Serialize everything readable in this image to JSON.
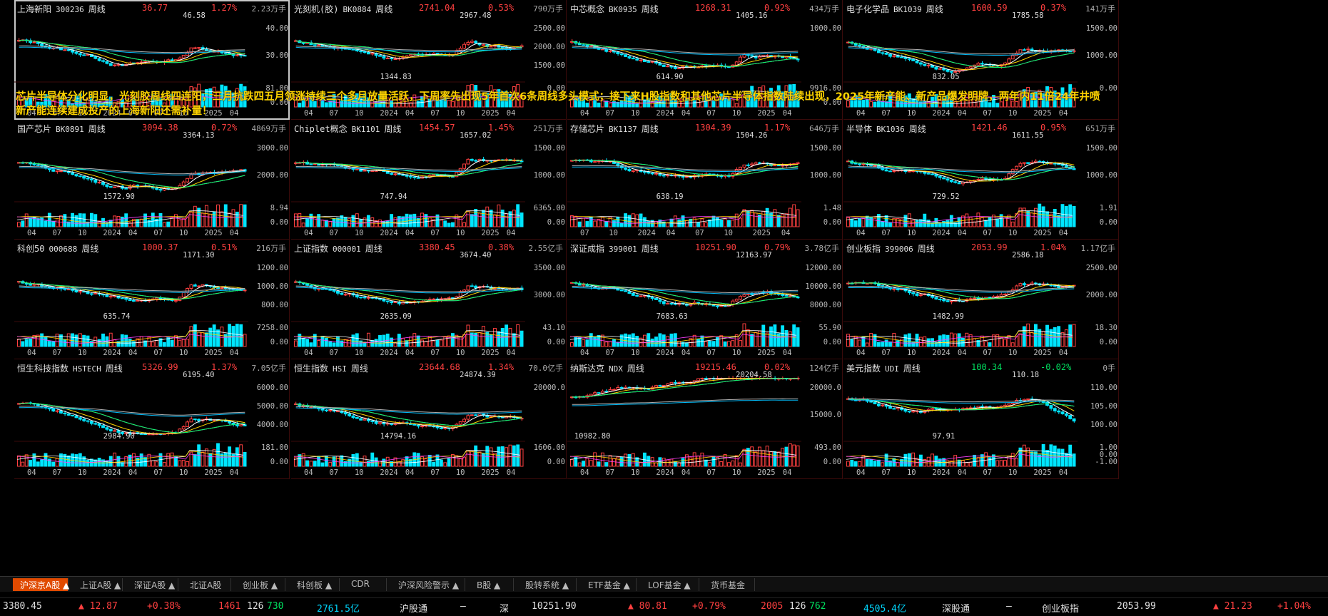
{
  "overlay_text": "芯片半导体分化明显，光刻胶周线四连阳，三月抗跌四五月领涨持续三个多月放量活跃，下周率先出现5年首次6条周线多头模式；接下来H股指数和其他芯片半导体指数陆续出现，2025年新产能、新产品爆发明牌，两年内11倍24年井喷新产能连续建成投产的上海新阳还需补量！",
  "colors": {
    "up": "#ff4040",
    "down": "#00e5ff",
    "ma5": "#ffffff",
    "ma10": "#ffd400",
    "ma20": "#ff40ff",
    "ma30": "#00ff60",
    "ma60": "#00c0ff",
    "ma120": "#b0b0b0"
  },
  "panels": [
    {
      "name": "上海新阳",
      "code": "300236",
      "period": "周线",
      "price": "36.77",
      "pct": "1.27%",
      "vol": "2.23万手",
      "yticks": [
        "40.00",
        "30.00"
      ],
      "vticks": [
        "81.00",
        "0.00"
      ],
      "xticks": [
        "04",
        "07",
        "10",
        "2024",
        "04",
        "07",
        "10",
        "2025",
        "04"
      ],
      "hi_label": "46.58",
      "lo_label": "",
      "selected": true
    },
    {
      "name": "光刻机(胶)",
      "code": "BK0884",
      "period": "周线",
      "price": "2741.04",
      "pct": "0.53%",
      "vol": "790万手",
      "yticks": [
        "2500.00",
        "2000.00",
        "1500.00"
      ],
      "vticks": [
        "0.00"
      ],
      "xticks": [
        "04",
        "07",
        "10",
        "2024",
        "04",
        "07",
        "10",
        "2025",
        "04"
      ],
      "hi_label": "2967.48",
      "lo_label": "1344.83"
    },
    {
      "name": "中芯概念",
      "code": "BK0935",
      "period": "周线",
      "price": "1268.31",
      "pct": "0.92%",
      "vol": "434万手",
      "yticks": [
        "1000.00"
      ],
      "vticks": [
        "9916.00",
        "0.00"
      ],
      "xticks": [
        "04",
        "07",
        "10",
        "2024",
        "04",
        "07",
        "10",
        "2025",
        "04"
      ],
      "hi_label": "1405.16",
      "lo_label": "614.90"
    },
    {
      "name": "电子化学品",
      "code": "BK1039",
      "period": "周线",
      "price": "1600.59",
      "pct": "0.37%",
      "vol": "141万手",
      "yticks": [
        "1500.00",
        "1000.00"
      ],
      "vticks": [
        "0.00"
      ],
      "xticks": [
        "04",
        "07",
        "10",
        "2024",
        "04",
        "07",
        "10",
        "2025",
        "04"
      ],
      "hi_label": "1785.58",
      "lo_label": "832.05"
    },
    {
      "name": "国产芯片",
      "code": "BK0891",
      "period": "周线",
      "price": "3094.38",
      "pct": "0.72%",
      "vol": "4869万手",
      "yticks": [
        "3000.00",
        "2000.00"
      ],
      "vticks": [
        "8.94",
        "0.00"
      ],
      "xticks": [
        "04",
        "07",
        "10",
        "2024",
        "04",
        "07",
        "10",
        "2025",
        "04"
      ],
      "hi_label": "3364.13",
      "lo_label": "1572.90"
    },
    {
      "name": "Chiplet概念",
      "code": "BK1101",
      "period": "周线",
      "price": "1454.57",
      "pct": "1.45%",
      "vol": "251万手",
      "yticks": [
        "1500.00",
        "1000.00"
      ],
      "vticks": [
        "6365.00",
        "0.00"
      ],
      "xticks": [
        "04",
        "07",
        "10",
        "2024",
        "04",
        "07",
        "10",
        "2025",
        "04"
      ],
      "hi_label": "1657.02",
      "lo_label": "747.94"
    },
    {
      "name": "存储芯片",
      "code": "BK1137",
      "period": "周线",
      "price": "1304.39",
      "pct": "1.17%",
      "vol": "646万手",
      "yticks": [
        "1500.00",
        "1000.00"
      ],
      "vticks": [
        "1.48",
        "0.00"
      ],
      "xticks": [
        "07",
        "10",
        "2024",
        "04",
        "07",
        "10",
        "2025",
        "04"
      ],
      "hi_label": "1504.26",
      "lo_label": "638.19"
    },
    {
      "name": "半导体",
      "code": "BK1036",
      "period": "周线",
      "price": "1421.46",
      "pct": "0.95%",
      "vol": "651万手",
      "yticks": [
        "1500.00",
        "1000.00"
      ],
      "vticks": [
        "1.91",
        "0.00"
      ],
      "xticks": [
        "04",
        "07",
        "10",
        "2024",
        "04",
        "07",
        "10",
        "2025",
        "04"
      ],
      "hi_label": "1611.55",
      "lo_label": "729.52"
    },
    {
      "name": "科创50",
      "code": "000688",
      "period": "周线",
      "price": "1000.37",
      "pct": "0.51%",
      "vol": "216万手",
      "yticks": [
        "1200.00",
        "1000.00",
        "800.00"
      ],
      "vticks": [
        "7258.00",
        "0.00"
      ],
      "xticks": [
        "04",
        "07",
        "10",
        "2024",
        "04",
        "07",
        "10",
        "2025",
        "04"
      ],
      "hi_label": "1171.30",
      "lo_label": "635.74"
    },
    {
      "name": "上证指数",
      "code": "000001",
      "period": "周线",
      "price": "3380.45",
      "pct": "0.38%",
      "vol": "2.55亿手",
      "yticks": [
        "3500.00",
        "3000.00"
      ],
      "vticks": [
        "43.10",
        "0.00"
      ],
      "xticks": [
        "04",
        "07",
        "10",
        "2024",
        "04",
        "07",
        "10",
        "2025",
        "04"
      ],
      "hi_label": "3674.40",
      "lo_label": "2635.09"
    },
    {
      "name": "深证成指",
      "code": "399001",
      "period": "周线",
      "price": "10251.90",
      "pct": "0.79%",
      "vol": "3.78亿手",
      "yticks": [
        "12000.00",
        "10000.00",
        "8000.00"
      ],
      "vticks": [
        "55.90",
        "0.00"
      ],
      "xticks": [
        "04",
        "07",
        "10",
        "2024",
        "04",
        "07",
        "10",
        "2025",
        "04"
      ],
      "hi_label": "12163.97",
      "lo_label": "7683.63"
    },
    {
      "name": "创业板指",
      "code": "399006",
      "period": "周线",
      "price": "2053.99",
      "pct": "1.04%",
      "vol": "1.17亿手",
      "yticks": [
        "2500.00",
        "2000.00"
      ],
      "vticks": [
        "18.30",
        "0.00"
      ],
      "xticks": [
        "04",
        "07",
        "10",
        "2024",
        "04",
        "07",
        "10",
        "2025",
        "04"
      ],
      "hi_label": "2586.18",
      "lo_label": "1482.99"
    },
    {
      "name": "恒生科技指数",
      "code": "HSTECH",
      "period": "周线",
      "price": "5326.99",
      "pct": "1.37%",
      "vol": "7.05亿手",
      "yticks": [
        "6000.00",
        "5000.00",
        "4000.00"
      ],
      "vticks": [
        "181.00",
        "0.00"
      ],
      "xticks": [
        "04",
        "07",
        "10",
        "2024",
        "04",
        "07",
        "10",
        "2025",
        "04"
      ],
      "hi_label": "6195.40",
      "lo_label": "2984.90"
    },
    {
      "name": "恒生指数",
      "code": "HSI",
      "period": "周线",
      "price": "23644.68",
      "pct": "1.34%",
      "vol": "70.0亿手",
      "yticks": [
        "20000.0"
      ],
      "vticks": [
        "1606.00",
        "0.00"
      ],
      "xticks": [
        "04",
        "07",
        "10",
        "2024",
        "04",
        "07",
        "10",
        "2025",
        "04"
      ],
      "hi_label": "24874.39",
      "lo_label": "14794.16"
    },
    {
      "name": "纳斯达克",
      "code": "NDX",
      "period": "周线",
      "price": "19215.46",
      "pct": "0.02%",
      "vol": "124亿手",
      "yticks": [
        "20000.0",
        "15000.0"
      ],
      "vticks": [
        "493.00",
        "0.00"
      ],
      "xticks": [
        "04",
        "07",
        "10",
        "2024",
        "04",
        "07",
        "10",
        "2025",
        "04"
      ],
      "hi_label": "20204.58",
      "lo_label": "10982.80"
    },
    {
      "name": "美元指数",
      "code": "UDI",
      "period": "周线",
      "price": "100.34",
      "pct": "-0.02%",
      "vol": "0手",
      "yticks": [
        "110.00",
        "105.00",
        "100.00"
      ],
      "vticks": [
        "1.00",
        "0.00",
        "-1.00"
      ],
      "xticks": [
        "04",
        "07",
        "10",
        "2024",
        "04",
        "07",
        "10",
        "2025",
        "04"
      ],
      "hi_label": "110.18",
      "lo_label": "97.91"
    }
  ],
  "tabs": [
    "沪深京A股 ▲",
    "上证A股 ▲",
    "深证A股 ▲",
    "北证A股",
    "创业板 ▲",
    "科创板 ▲",
    "CDR",
    "沪深风险警示 ▲",
    "B股 ▲",
    "股转系统 ▲",
    "ETF基金 ▲",
    "LOF基金 ▲",
    "货币基金"
  ],
  "status": {
    "sh_index": "3380.45",
    "sh_chg": "▲ 12.87",
    "sh_pct": "+0.38%",
    "sh_up": "1461",
    "sh_flat": "126",
    "sh_down": "730",
    "sh_amt": "2761.5亿",
    "sh_connect": "沪股通",
    "sh_connect_val": "—",
    "sz_label": "深",
    "sz_index": "10251.90",
    "sz_chg": "▲ 80.81",
    "sz_pct": "+0.79%",
    "sz_up": "2005",
    "sz_flat": "126",
    "sz_down": "762",
    "sz_amt": "4505.4亿",
    "sz_connect": "深股通",
    "sz_connect_val": "—",
    "cy_label": "创业板指",
    "cy_index": "2053.99",
    "cy_chg": "▲ 21.23",
    "cy_pct": "+1.04%"
  }
}
